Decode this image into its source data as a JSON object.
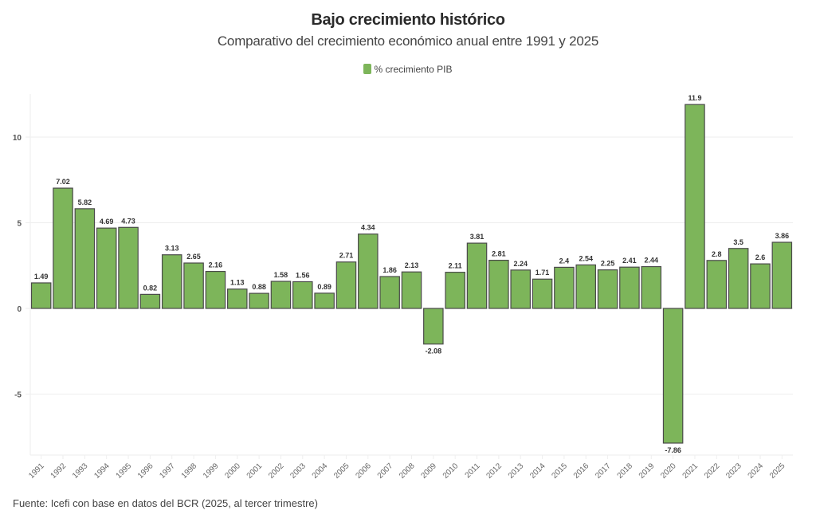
{
  "chart_data": {
    "type": "bar",
    "title": "Bajo crecimiento histórico",
    "subtitle": "Comparativo del crecimiento económico anual entre 1991 y 2025",
    "xlabel": "",
    "ylabel": "",
    "ylim": [
      -8.5,
      12.5
    ],
    "yticks": [
      -5,
      0,
      5,
      10
    ],
    "grid": true,
    "legend_position": "top-center",
    "series": [
      {
        "name": "% crecimiento PIB",
        "color": "#7db55a",
        "values": [
          1.49,
          7.02,
          5.82,
          4.69,
          4.73,
          0.82,
          3.13,
          2.65,
          2.16,
          1.13,
          0.88,
          1.58,
          1.56,
          0.89,
          2.71,
          4.34,
          1.86,
          2.13,
          -2.08,
          2.11,
          3.81,
          2.81,
          2.24,
          1.71,
          2.4,
          2.54,
          2.25,
          2.41,
          2.44,
          -7.86,
          11.9,
          2.8,
          3.5,
          2.6,
          3.86
        ]
      }
    ],
    "categories": [
      "1991",
      "1992",
      "1993",
      "1994",
      "1995",
      "1996",
      "1997",
      "1998",
      "1999",
      "2000",
      "2001",
      "2002",
      "2003",
      "2004",
      "2005",
      "2006",
      "2007",
      "2008",
      "2009",
      "2010",
      "2011",
      "2012",
      "2013",
      "2014",
      "2015",
      "2016",
      "2017",
      "2018",
      "2019",
      "2020",
      "2021",
      "2022",
      "2023",
      "2024",
      "2025"
    ],
    "data_labels": [
      "1.49",
      "7.02",
      "5.82",
      "4.69",
      "4.73",
      "0.82",
      "3.13",
      "2.65",
      "2.16",
      "1.13",
      "0.88",
      "1.58",
      "1.56",
      "0.89",
      "2.71",
      "4.34",
      "1.86",
      "2.13",
      "-2.08",
      "2.11",
      "3.81",
      "2.81",
      "2.24",
      "1.71",
      "2.4",
      "2.54",
      "2.25",
      "2.41",
      "2.44",
      "-7.86",
      "11.9",
      "2.8",
      "3.5",
      "2.6",
      "3.86"
    ],
    "source": "Fuente: Icefi con base en datos del BCR (2025, al tercer trimestre)"
  },
  "colors": {
    "bar_fill": "#7db55a",
    "bar_stroke": "#4a4a4a",
    "grid": "#eeeeee"
  }
}
